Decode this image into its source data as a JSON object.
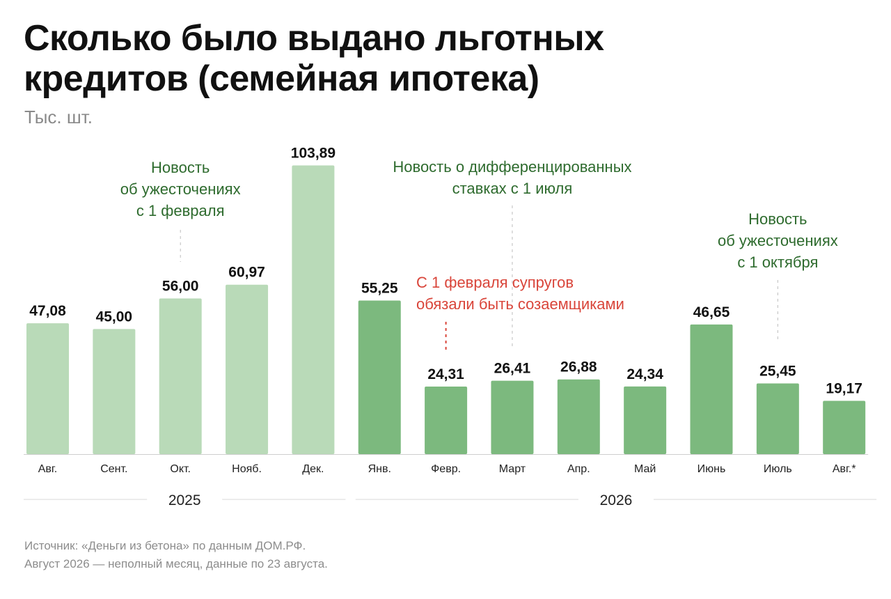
{
  "title_line1": "Сколько было выдано льготных",
  "title_line2": "кредитов (семейная ипотека)",
  "unit": "Тыс. шт.",
  "source_line1": "Источник: «Деньги из бетона» по данным ДОМ.РФ.",
  "source_line2": "Август 2026 — неполный месяц, данные по 23 августа.",
  "colors": {
    "bar_2025": "#b9dab8",
    "bar_2026": "#7cb97e",
    "annotation_green": "#2e6b2e",
    "annotation_red": "#d9453a",
    "axis": "#cfcfcf"
  },
  "chart_data": {
    "type": "bar",
    "categories": [
      "Авг.",
      "Сент.",
      "Окт.",
      "Нояб.",
      "Дек.",
      "Янв.",
      "Февр.",
      "Март",
      "Апр.",
      "Май",
      "Июнь",
      "Июль",
      "Авг.*"
    ],
    "values": [
      47.08,
      45.0,
      56.0,
      60.97,
      103.89,
      55.25,
      24.31,
      26.41,
      26.88,
      24.34,
      46.65,
      25.45,
      19.17
    ],
    "value_labels": [
      "47,08",
      "45,00",
      "56,00",
      "60,97",
      "103,89",
      "55,25",
      "24,31",
      "26,41",
      "26,88",
      "24,34",
      "46,65",
      "25,45",
      "19,17"
    ],
    "groups": [
      {
        "label": "2025",
        "from": 0,
        "to": 4
      },
      {
        "label": "2026",
        "from": 5,
        "to": 12
      }
    ],
    "ylim": [
      0,
      104
    ],
    "grid": false,
    "annotations": [
      {
        "lines": [
          "Новость",
          "об ужесточениях",
          "с 1 февраля"
        ],
        "category_index": 2,
        "color": "green"
      },
      {
        "lines": [
          "Новость о дифференцированных",
          "ставках с 1 июля"
        ],
        "category_index": 7,
        "color": "green"
      },
      {
        "lines": [
          "С 1 февраля супругов",
          "обязали быть созаемщиками"
        ],
        "category_index": 6,
        "color": "red"
      },
      {
        "lines": [
          "Новость",
          "об ужесточениях",
          "с 1 октября"
        ],
        "category_index": 11,
        "color": "green"
      }
    ]
  }
}
